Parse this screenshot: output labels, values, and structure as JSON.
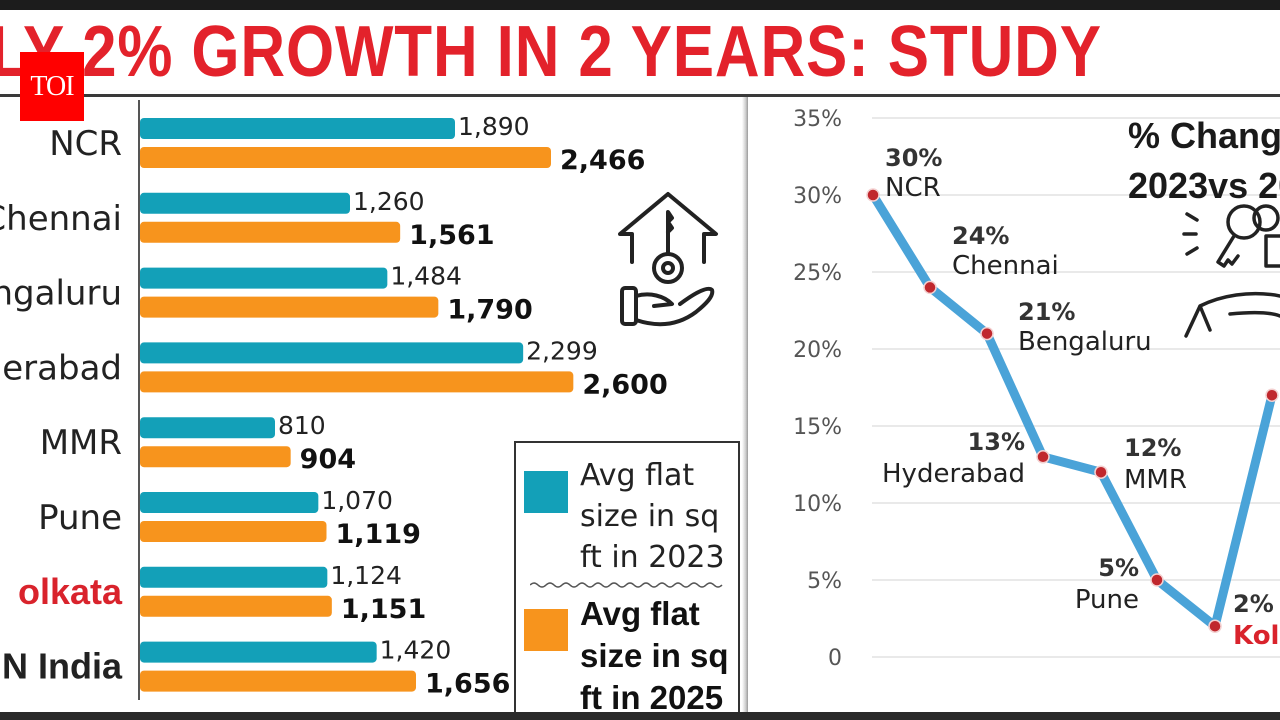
{
  "headline": "LY 2% GROWTH IN 2 YEARS: STUDY",
  "logo": "TOI",
  "colors": {
    "headline": "#e3222b",
    "logo_bg": "#ff0000",
    "bar_2023": "#13a0b8",
    "bar_2025": "#f7941d",
    "line": "#4aa3d8",
    "marker": "#c0272d",
    "highlight": "#d9232c"
  },
  "icons": {
    "bar_chart_icon": "house-key-hand-icon",
    "line_chart_icon": "keys-hand-icon"
  },
  "chart_data": [
    {
      "type": "bar",
      "orientation": "horizontal",
      "title": "",
      "categories": [
        "NCR",
        "Chennai",
        "Bengaluru",
        "Hyderabad",
        "MMR",
        "Pune",
        "Kolkata",
        "PAN India"
      ],
      "category_labels_visible": [
        "NCR",
        "Chennai",
        "ngaluru",
        "erabad",
        "MMR",
        "Pune",
        "olkata",
        "N India"
      ],
      "highlight_category": "Kolkata",
      "series": [
        {
          "name": "Avg flat size in sq ft in 2023",
          "values": [
            1890,
            1260,
            1484,
            2299,
            810,
            1070,
            1124,
            1420
          ],
          "labels": [
            "1,890",
            "1,260",
            "1,484",
            "2,299",
            "810",
            "1,070",
            "1,124",
            "1,420"
          ]
        },
        {
          "name": "Avg flat size in sq ft in 2025",
          "values": [
            2466,
            1561,
            1790,
            2600,
            904,
            1119,
            1151,
            1656
          ],
          "labels": [
            "2,466",
            "1,561",
            "1,790",
            "2,600",
            "904",
            "1,119",
            "1,151",
            "1,656"
          ]
        }
      ],
      "legend": [
        {
          "lines": [
            "Avg flat",
            "size in sq",
            "ft in 2023"
          ]
        },
        {
          "lines": [
            "Avg flat",
            "size in sq",
            "ft in 2025"
          ]
        }
      ],
      "legend_position": "bottom-right",
      "xlim": [
        0,
        2700
      ]
    },
    {
      "type": "line",
      "title_lines": [
        "% Chang",
        "2023vs 20"
      ],
      "categories": [
        "NCR",
        "Chennai",
        "Bengaluru",
        "Hyderabad",
        "MMR",
        "Pune",
        "Kolkata",
        ""
      ],
      "category_labels_visible": [
        "NCR",
        "Chennai",
        "Bengaluru",
        "Hyderabad",
        "MMR",
        "Pune",
        "Koll",
        ""
      ],
      "values": [
        30,
        24,
        21,
        13,
        12,
        5,
        2,
        17
      ],
      "value_labels": [
        "30%",
        "24%",
        "21%",
        "13%",
        "12%",
        "5%",
        "2%",
        ""
      ],
      "highlight_category": "Kolkata",
      "ylabel": "",
      "yticks": [
        "0",
        "5%",
        "10%",
        "15%",
        "20%",
        "25%",
        "30%",
        "35%"
      ],
      "ytick_values": [
        0,
        5,
        10,
        15,
        20,
        25,
        30,
        35
      ],
      "ylim": [
        0,
        35
      ],
      "grid": true
    }
  ]
}
